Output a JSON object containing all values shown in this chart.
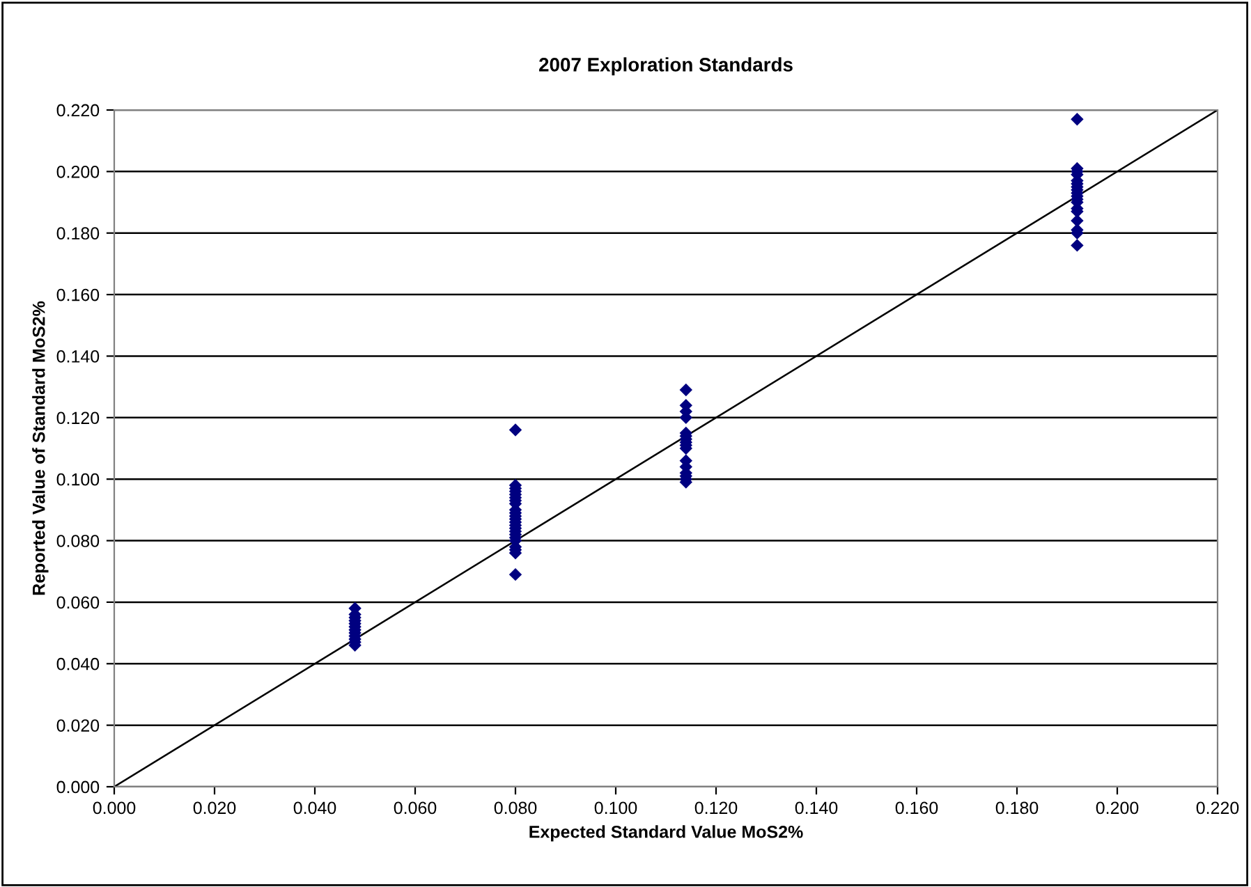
{
  "chart_data": {
    "type": "scatter",
    "title": "2007 Exploration Standards",
    "xlabel": "Expected Standard Value MoS2%",
    "ylabel": "Reported Value of Standard MoS2%",
    "xlim": [
      0,
      0.22
    ],
    "ylim": [
      0,
      0.22
    ],
    "xticks": [
      {
        "value": 0,
        "label": "0.000"
      },
      {
        "value": 0.02,
        "label": "0.020"
      },
      {
        "value": 0.04,
        "label": "0.040"
      },
      {
        "value": 0.06,
        "label": "0.060"
      },
      {
        "value": 0.08,
        "label": "0.080"
      },
      {
        "value": 0.1,
        "label": "0.100"
      },
      {
        "value": 0.12,
        "label": "0.120"
      },
      {
        "value": 0.14,
        "label": "0.140"
      },
      {
        "value": 0.16,
        "label": "0.160"
      },
      {
        "value": 0.18,
        "label": "0.180"
      },
      {
        "value": 0.2,
        "label": "0.200"
      },
      {
        "value": 0.22,
        "label": "0.220"
      }
    ],
    "yticks": [
      {
        "value": 0,
        "label": "0.000"
      },
      {
        "value": 0.02,
        "label": "0.020"
      },
      {
        "value": 0.04,
        "label": "0.040"
      },
      {
        "value": 0.06,
        "label": "0.060"
      },
      {
        "value": 0.08,
        "label": "0.080"
      },
      {
        "value": 0.1,
        "label": "0.100"
      },
      {
        "value": 0.12,
        "label": "0.120"
      },
      {
        "value": 0.14,
        "label": "0.140"
      },
      {
        "value": 0.16,
        "label": "0.160"
      },
      {
        "value": 0.18,
        "label": "0.180"
      },
      {
        "value": 0.2,
        "label": "0.200"
      },
      {
        "value": 0.22,
        "label": "0.220"
      }
    ],
    "grid": "y",
    "legend": false,
    "series": [
      {
        "color": "#000080",
        "marker": "diamond",
        "x": [
          0.048,
          0.048,
          0.048,
          0.048,
          0.048,
          0.048,
          0.048,
          0.048,
          0.048,
          0.048,
          0.048,
          0.048,
          0.08,
          0.08,
          0.08,
          0.08,
          0.08,
          0.08,
          0.08,
          0.08,
          0.08,
          0.08,
          0.08,
          0.08,
          0.08,
          0.08,
          0.08,
          0.08,
          0.08,
          0.08,
          0.08,
          0.08,
          0.08,
          0.08,
          0.08,
          0.114,
          0.114,
          0.114,
          0.114,
          0.114,
          0.114,
          0.114,
          0.114,
          0.114,
          0.114,
          0.114,
          0.114,
          0.114,
          0.114,
          0.114,
          0.114,
          0.192,
          0.192,
          0.192,
          0.192,
          0.192,
          0.192,
          0.192,
          0.192,
          0.192,
          0.192,
          0.192,
          0.192,
          0.192,
          0.192,
          0.192,
          0.192,
          0.192,
          0.192
        ],
        "values": [
          0.046,
          0.047,
          0.048,
          0.049,
          0.05,
          0.051,
          0.052,
          0.053,
          0.054,
          0.055,
          0.056,
          0.058,
          0.069,
          0.076,
          0.077,
          0.078,
          0.08,
          0.081,
          0.082,
          0.083,
          0.084,
          0.085,
          0.086,
          0.087,
          0.088,
          0.089,
          0.09,
          0.092,
          0.093,
          0.094,
          0.095,
          0.096,
          0.097,
          0.098,
          0.116,
          0.099,
          0.1,
          0.101,
          0.102,
          0.104,
          0.106,
          0.11,
          0.111,
          0.112,
          0.113,
          0.114,
          0.115,
          0.12,
          0.122,
          0.124,
          0.129,
          0.176,
          0.18,
          0.181,
          0.184,
          0.187,
          0.188,
          0.19,
          0.191,
          0.192,
          0.193,
          0.194,
          0.195,
          0.196,
          0.197,
          0.199,
          0.2,
          0.201,
          0.217
        ]
      },
      {
        "type": "line",
        "color": "#000000",
        "marker": "none",
        "line_style": "solid",
        "x": [
          0,
          0.22
        ],
        "values": [
          0,
          0.22
        ]
      }
    ]
  }
}
